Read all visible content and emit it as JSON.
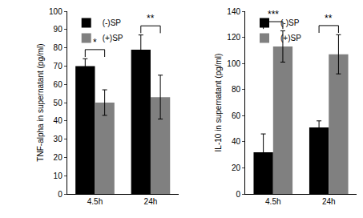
{
  "chart_data": [
    {
      "type": "bar",
      "ylabel": "TNF-alpha in supernatant (pg/ml)",
      "categories": [
        "4.5h",
        "24h"
      ],
      "series": [
        {
          "name": "(-)SP",
          "color": "#000000",
          "values": [
            70,
            79
          ],
          "errors": [
            4,
            8
          ]
        },
        {
          "name": "(+)SP",
          "color": "#808080",
          "values": [
            50,
            53
          ],
          "errors": [
            7,
            12
          ]
        }
      ],
      "ylim": [
        0,
        100
      ],
      "yticks": [
        0,
        10,
        20,
        30,
        40,
        50,
        60,
        70,
        80,
        90,
        100
      ],
      "legend": "top left",
      "grid": false,
      "annotations": [
        {
          "category": "4.5h",
          "text": "*"
        },
        {
          "category": "24h",
          "text": "**"
        }
      ]
    },
    {
      "type": "bar",
      "ylabel": "IL-10 in supernatant (pg/ml)",
      "categories": [
        "4.5h",
        "24h"
      ],
      "series": [
        {
          "name": "(-)SP",
          "color": "#000000",
          "values": [
            32,
            51
          ],
          "errors": [
            14,
            5
          ]
        },
        {
          "name": "(+)SP",
          "color": "#808080",
          "values": [
            113,
            107
          ],
          "errors": [
            12,
            15
          ]
        }
      ],
      "ylim": [
        0,
        140
      ],
      "yticks": [
        0,
        20,
        40,
        60,
        80,
        100,
        120,
        140
      ],
      "legend": "top left",
      "grid": false,
      "annotations": [
        {
          "category": "4.5h",
          "text": "***"
        },
        {
          "category": "24h",
          "text": "**"
        }
      ]
    }
  ]
}
